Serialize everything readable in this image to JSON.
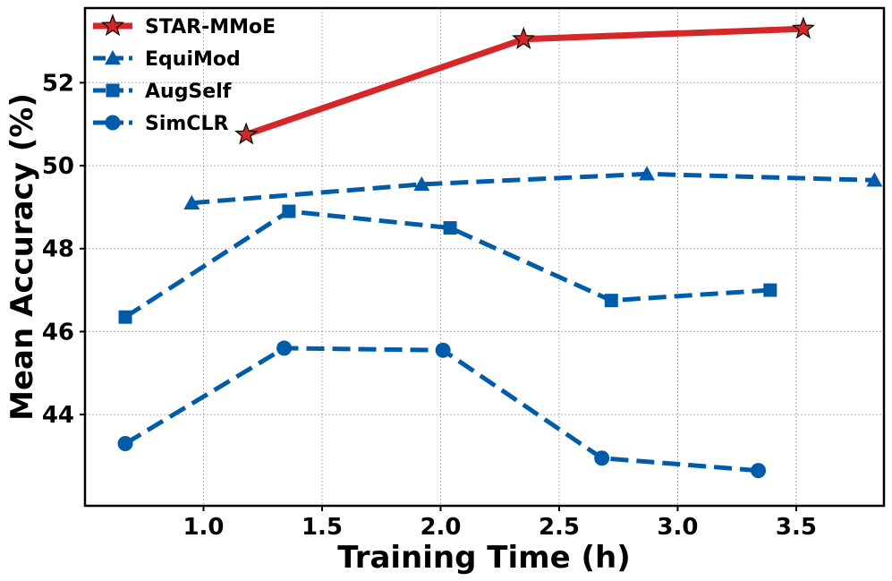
{
  "chart_data": {
    "type": "line",
    "title": "",
    "xlabel": "Training Time (h)",
    "ylabel": "Mean Accuracy (%)",
    "xlim": [
      0.5,
      3.87
    ],
    "ylim": [
      41.8,
      53.8
    ],
    "xticks": [
      1.0,
      1.5,
      2.0,
      2.5,
      3.0,
      3.5
    ],
    "xtick_labels": [
      "1.0",
      "1.5",
      "2.0",
      "2.5",
      "3.0",
      "3.5"
    ],
    "yticks": [
      44,
      46,
      48,
      50,
      52
    ],
    "ytick_labels": [
      "44",
      "46",
      "48",
      "50",
      "52"
    ],
    "grid": true,
    "legend_position": "top-left",
    "series": [
      {
        "name": "STAR-MMoE",
        "color": "#d62728",
        "linestyle": "solid",
        "marker": "star",
        "x": [
          1.18,
          2.35,
          3.53
        ],
        "y": [
          50.75,
          53.05,
          53.3
        ]
      },
      {
        "name": "EquiMod",
        "color": "#005ba8",
        "linestyle": "dashed",
        "marker": "triangle",
        "x": [
          0.95,
          1.92,
          2.87,
          3.83
        ],
        "y": [
          49.1,
          49.55,
          49.8,
          49.65
        ]
      },
      {
        "name": "AugSelf",
        "color": "#005ba8",
        "linestyle": "dashed",
        "marker": "square",
        "x": [
          0.67,
          1.36,
          2.04,
          2.72,
          3.39
        ],
        "y": [
          46.35,
          48.9,
          48.5,
          46.75,
          47.0
        ]
      },
      {
        "name": "SimCLR",
        "color": "#005ba8",
        "linestyle": "dashed",
        "marker": "circle",
        "x": [
          0.67,
          1.34,
          2.01,
          2.68,
          3.34
        ],
        "y": [
          43.3,
          45.6,
          45.55,
          42.95,
          42.65
        ]
      }
    ]
  }
}
